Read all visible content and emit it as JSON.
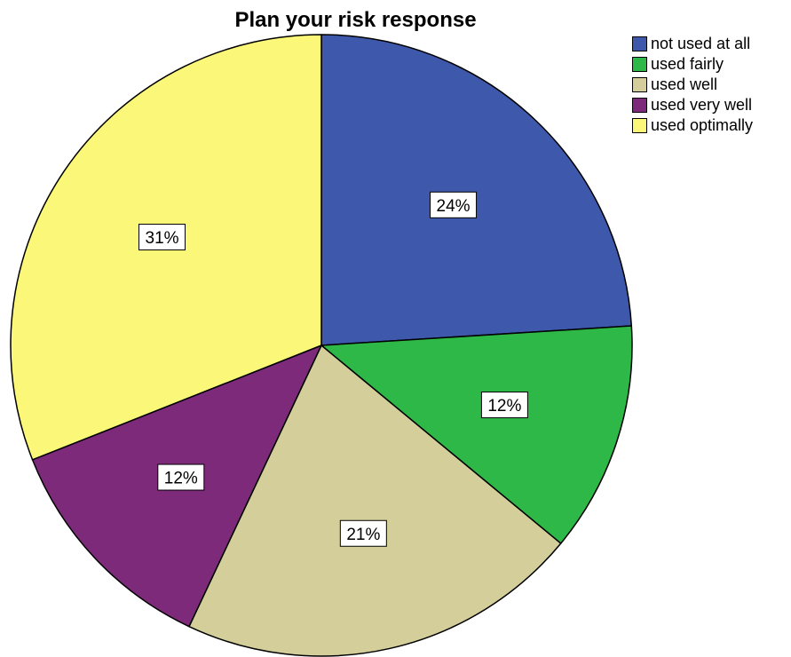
{
  "chart_data": {
    "type": "pie",
    "title": "Plan your risk response",
    "start_angle_deg": 0,
    "direction": "clockwise",
    "series": [
      {
        "name": "not used at all",
        "value": 24,
        "label": "24%",
        "color": "#3E58AC"
      },
      {
        "name": "used fairly",
        "value": 12,
        "label": "12%",
        "color": "#2EB848"
      },
      {
        "name": "used well",
        "value": 21,
        "label": "21%",
        "color": "#D4CF9A"
      },
      {
        "name": "used very well",
        "value": 12,
        "label": "12%",
        "color": "#7D2A7B"
      },
      {
        "name": "used optimally",
        "value": 31,
        "label": "31%",
        "color": "#FBF778"
      }
    ],
    "legend_position": "top-right"
  }
}
